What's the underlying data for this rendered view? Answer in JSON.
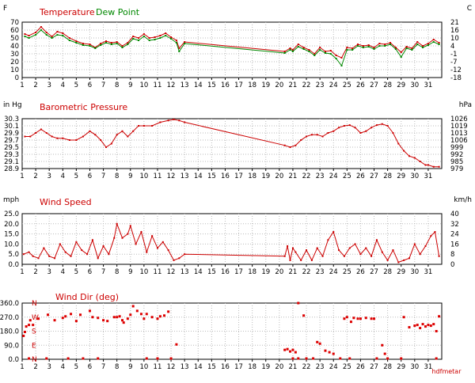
{
  "watermark": "hdfmetar",
  "chart_data": [
    {
      "type": "line",
      "title": "Temperature",
      "left_unit": "F",
      "right_unit": "C",
      "x_range": [
        1,
        32
      ],
      "x_ticks": [
        "1",
        "2",
        "3",
        "4",
        "5",
        "6",
        "7",
        "8",
        "9",
        "10",
        "11",
        "12",
        "13",
        "14",
        "15",
        "16",
        "17",
        "18",
        "19",
        "20",
        "21",
        "22",
        "23",
        "24",
        "25",
        "26",
        "27",
        "28",
        "29",
        "30",
        "31"
      ],
      "ylim": [
        0,
        70
      ],
      "y_ticks": [
        "0",
        "10",
        "20",
        "30",
        "40",
        "50",
        "60",
        "70"
      ],
      "right_ylim": [
        -18,
        21
      ],
      "right_ticks": [
        "-18",
        "-12",
        "-7",
        "-1",
        "4",
        "10",
        "16",
        "21"
      ],
      "series": [
        {
          "name": "Temperature",
          "color": "#cc0000",
          "x": [
            1.2,
            1.5,
            2.0,
            2.4,
            2.8,
            3.2,
            3.6,
            4.0,
            4.5,
            5.0,
            5.5,
            6.0,
            6.4,
            6.8,
            7.2,
            7.6,
            8.0,
            8.4,
            8.8,
            9.2,
            9.6,
            10.0,
            10.4,
            10.8,
            11.2,
            11.6,
            12.0,
            12.4,
            12.6,
            13.0,
            20.4,
            20.8,
            21.0,
            21.4,
            21.8,
            22.2,
            22.6,
            23.0,
            23.4,
            23.8,
            24.2,
            24.6,
            25.0,
            25.4,
            25.8,
            26.2,
            26.6,
            27.0,
            27.4,
            27.8,
            28.2,
            28.6,
            29.0,
            29.4,
            29.8,
            30.2,
            30.6,
            31.0,
            31.4,
            31.8
          ],
          "y": [
            55,
            53,
            57,
            64,
            57,
            52,
            58,
            56,
            50,
            46,
            43,
            42,
            38,
            43,
            46,
            44,
            45,
            40,
            44,
            52,
            50,
            55,
            50,
            51,
            53,
            56,
            51,
            47,
            37,
            45,
            33,
            37,
            35,
            42,
            38,
            35,
            30,
            38,
            33,
            34,
            28,
            25,
            38,
            37,
            42,
            40,
            41,
            38,
            43,
            42,
            44,
            38,
            32,
            39,
            37,
            45,
            40,
            43,
            48,
            44
          ]
        },
        {
          "name": "Dew Point",
          "color": "#008800",
          "x": [
            1.2,
            1.5,
            2.0,
            2.4,
            2.8,
            3.2,
            3.6,
            4.0,
            4.5,
            5.0,
            5.5,
            6.0,
            6.4,
            6.8,
            7.2,
            7.6,
            8.0,
            8.4,
            8.8,
            9.2,
            9.6,
            10.0,
            10.4,
            10.8,
            11.2,
            11.6,
            12.0,
            12.4,
            12.6,
            13.0,
            20.4,
            20.8,
            21.0,
            21.4,
            21.8,
            22.2,
            22.6,
            23.0,
            23.4,
            23.8,
            24.2,
            24.6,
            25.0,
            25.4,
            25.8,
            26.2,
            26.6,
            27.0,
            27.4,
            27.8,
            28.2,
            28.6,
            29.0,
            29.4,
            29.8,
            30.2,
            30.6,
            31.0,
            31.4,
            31.8
          ],
          "y": [
            52,
            50,
            54,
            60,
            54,
            50,
            54,
            53,
            47,
            44,
            41,
            40,
            37,
            41,
            44,
            42,
            43,
            38,
            42,
            49,
            47,
            52,
            47,
            48,
            50,
            53,
            49,
            44,
            33,
            43,
            31,
            35,
            33,
            39,
            36,
            33,
            28,
            35,
            31,
            30,
            24,
            15,
            35,
            35,
            40,
            38,
            39,
            36,
            40,
            40,
            42,
            36,
            26,
            37,
            35,
            42,
            38,
            41,
            45,
            42
          ]
        }
      ]
    },
    {
      "type": "line",
      "title": "Barometric Pressure",
      "left_unit": "in Hg",
      "right_unit": "hPa",
      "x_range": [
        1,
        32
      ],
      "x_ticks": [
        "1",
        "2",
        "3",
        "4",
        "5",
        "6",
        "7",
        "8",
        "9",
        "10",
        "11",
        "12",
        "13",
        "14",
        "15",
        "16",
        "17",
        "18",
        "19",
        "20",
        "21",
        "22",
        "23",
        "24",
        "25",
        "26",
        "27",
        "28",
        "29",
        "30",
        "31"
      ],
      "ylim": [
        28.9,
        30.3
      ],
      "y_ticks": [
        "28.9",
        "29.1",
        "29.3",
        "29.5",
        "29.7",
        "29.9",
        "30.1",
        "30.3"
      ],
      "right_ylim": [
        979,
        1026
      ],
      "right_ticks": [
        "979",
        "985",
        "992",
        "999",
        "1006",
        "1013",
        "1019",
        "1026"
      ],
      "series": [
        {
          "name": "Barometric Pressure",
          "color": "#cc0000",
          "x": [
            1.2,
            1.6,
            2.0,
            2.4,
            2.8,
            3.2,
            3.6,
            4.0,
            4.5,
            5.0,
            5.5,
            6.0,
            6.4,
            6.8,
            7.2,
            7.6,
            8.0,
            8.4,
            8.8,
            9.2,
            9.6,
            10.0,
            10.6,
            11.2,
            11.8,
            12.2,
            12.6,
            13.0,
            20.4,
            20.8,
            21.2,
            21.6,
            22.0,
            22.4,
            22.8,
            23.2,
            23.6,
            24.0,
            24.4,
            24.8,
            25.2,
            25.6,
            26.0,
            26.4,
            26.8,
            27.2,
            27.6,
            28.0,
            28.4,
            28.8,
            29.2,
            29.6,
            30.0,
            30.4,
            30.8,
            31.0,
            31.4,
            31.8
          ],
          "y": [
            29.8,
            29.8,
            29.9,
            30.0,
            29.9,
            29.8,
            29.75,
            29.75,
            29.7,
            29.7,
            29.8,
            29.95,
            29.85,
            29.7,
            29.5,
            29.6,
            29.85,
            29.95,
            29.8,
            29.95,
            30.1,
            30.1,
            30.1,
            30.2,
            30.25,
            30.28,
            30.25,
            30.2,
            29.55,
            29.5,
            29.55,
            29.7,
            29.8,
            29.85,
            29.85,
            29.8,
            29.9,
            29.95,
            30.05,
            30.1,
            30.12,
            30.05,
            29.9,
            29.95,
            30.05,
            30.12,
            30.15,
            30.1,
            29.9,
            29.6,
            29.4,
            29.25,
            29.2,
            29.1,
            29.0,
            29.0,
            28.95,
            28.95
          ]
        }
      ]
    },
    {
      "type": "line",
      "title": "Wind Speed",
      "left_unit": "mph",
      "right_unit": "km/h",
      "x_range": [
        1,
        32
      ],
      "x_ticks": [
        "1",
        "2",
        "3",
        "4",
        "5",
        "6",
        "7",
        "8",
        "9",
        "10",
        "11",
        "12",
        "13",
        "14",
        "15",
        "16",
        "17",
        "18",
        "19",
        "20",
        "21",
        "22",
        "23",
        "24",
        "25",
        "26",
        "27",
        "28",
        "29",
        "30",
        "31"
      ],
      "ylim": [
        0,
        25
      ],
      "y_ticks": [
        "0.0",
        "5.0",
        "10.0",
        "15.0",
        "20.0",
        "25.0"
      ],
      "right_ylim": [
        0,
        40
      ],
      "right_ticks": [
        "0",
        "8",
        "16",
        "24",
        "32",
        "40"
      ],
      "series": [
        {
          "name": "Wind Speed",
          "color": "#cc0000",
          "x": [
            1.1,
            1.5,
            1.8,
            2.2,
            2.6,
            3.0,
            3.4,
            3.8,
            4.2,
            4.6,
            5.0,
            5.4,
            5.8,
            6.2,
            6.6,
            7.0,
            7.4,
            7.8,
            8.0,
            8.4,
            8.8,
            9.0,
            9.4,
            9.8,
            10.2,
            10.6,
            11.0,
            11.4,
            11.8,
            12.2,
            12.6,
            13.0,
            20.4,
            20.6,
            20.8,
            21.0,
            21.2,
            21.6,
            22.0,
            22.4,
            22.8,
            23.2,
            23.6,
            24.0,
            24.4,
            24.8,
            25.2,
            25.6,
            26.0,
            26.4,
            26.8,
            27.2,
            27.6,
            28.0,
            28.4,
            28.8,
            29.2,
            29.6,
            30.0,
            30.4,
            30.8,
            31.2,
            31.5,
            31.8
          ],
          "y": [
            5,
            6,
            4,
            3,
            8,
            4,
            3,
            10,
            6,
            4,
            11,
            7,
            5,
            12,
            3,
            9,
            5,
            13,
            20,
            13,
            15,
            19,
            10,
            16,
            6,
            14,
            8,
            11,
            7,
            2,
            3,
            5,
            4,
            9,
            2,
            8,
            6,
            2,
            7,
            2,
            8,
            4,
            12,
            16,
            7,
            4,
            8,
            10,
            5,
            8,
            4,
            12,
            6,
            2,
            7,
            1,
            2,
            3,
            10,
            5,
            9,
            14,
            16,
            4
          ]
        }
      ]
    },
    {
      "type": "scatter",
      "title": "Wind Dir (deg)",
      "x_range": [
        1,
        32
      ],
      "x_ticks": [
        "1",
        "2",
        "3",
        "4",
        "5",
        "6",
        "7",
        "8",
        "9",
        "10",
        "11",
        "12",
        "13",
        "14",
        "15",
        "16",
        "17",
        "18",
        "19",
        "20",
        "21",
        "22",
        "23",
        "24",
        "25",
        "26",
        "27",
        "28",
        "29",
        "30",
        "31"
      ],
      "ylim": [
        0,
        360
      ],
      "y_ticks": [
        "0.0",
        "90.0",
        "180.0",
        "270.0",
        "360.0"
      ],
      "compass_labels": [
        "N",
        "W",
        "S",
        "E",
        "N"
      ],
      "series": [
        {
          "name": "Wind Dir (deg)",
          "color": "#dd0000",
          "x": [
            1.1,
            1.2,
            1.3,
            1.5,
            1.6,
            1.8,
            2.2,
            2.9,
            3.4,
            4.0,
            4.2,
            4.6,
            5.0,
            5.3,
            6.0,
            6.2,
            6.6,
            7.0,
            7.3,
            7.8,
            8.0,
            8.2,
            8.4,
            8.5,
            8.8,
            9.0,
            9.2,
            9.5,
            9.8,
            10.0,
            10.2,
            10.6,
            11.0,
            11.2,
            11.5,
            11.8,
            12.4,
            20.4,
            20.6,
            20.8,
            21.0,
            21.2,
            21.4,
            21.8,
            22.8,
            23.0,
            23.4,
            23.7,
            24.0,
            24.8,
            25.0,
            25.3,
            25.5,
            25.8,
            26.0,
            26.4,
            26.8,
            27.0,
            27.6,
            27.8,
            28.0,
            29.2,
            29.6,
            30.0,
            30.2,
            30.4,
            30.6,
            30.8,
            31.0,
            31.2,
            31.4,
            31.6,
            31.8,
            1.5,
            2.8,
            4.4,
            5.5,
            6.6,
            10.2,
            11.0,
            12.0,
            21.0,
            21.4,
            22.0,
            22.5,
            24.5,
            25.2,
            27.2,
            29.0,
            31.6
          ],
          "y": [
            150,
            175,
            210,
            220,
            250,
            220,
            260,
            285,
            250,
            265,
            275,
            290,
            245,
            285,
            310,
            270,
            265,
            250,
            245,
            270,
            270,
            275,
            250,
            235,
            260,
            285,
            340,
            310,
            290,
            260,
            290,
            270,
            260,
            275,
            280,
            305,
            95,
            60,
            65,
            50,
            60,
            45,
            360,
            280,
            110,
            100,
            55,
            45,
            35,
            260,
            270,
            240,
            265,
            260,
            260,
            265,
            260,
            260,
            90,
            35,
            5,
            270,
            205,
            215,
            220,
            200,
            225,
            210,
            220,
            215,
            225,
            180,
            275,
            5,
            5,
            5,
            5,
            5,
            5,
            5,
            5,
            5,
            5,
            5,
            5,
            5,
            5,
            5,
            5,
            5
          ]
        }
      ]
    }
  ]
}
